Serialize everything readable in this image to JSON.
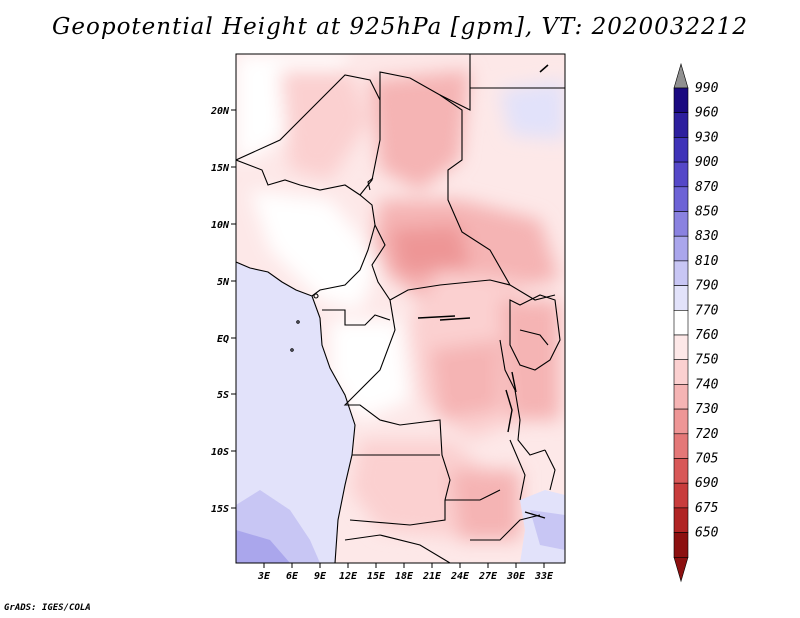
{
  "title": "Geopotential Height at 925hPa [gpm], VT: 2020032212",
  "credit": "GrADS: IGES/COLA",
  "map": {
    "lat_ticks": [
      "20N",
      "15N",
      "10N",
      "5N",
      "EQ",
      "5S",
      "10S",
      "15S"
    ],
    "lon_ticks": [
      "3E",
      "6E",
      "9E",
      "12E",
      "15E",
      "18E",
      "21E",
      "24E",
      "27E",
      "30E",
      "33E"
    ]
  },
  "colorbar": {
    "levels": [
      "990",
      "960",
      "930",
      "900",
      "870",
      "850",
      "830",
      "810",
      "790",
      "770",
      "760",
      "750",
      "740",
      "730",
      "720",
      "705",
      "690",
      "675",
      "650"
    ],
    "colors": [
      "#1a0a80",
      "#2d1f9e",
      "#3f33b8",
      "#5548c8",
      "#6d63d6",
      "#8a82e0",
      "#aaa6ec",
      "#c8c6f4",
      "#e2e2fa",
      "#ffffff",
      "#fde8e8",
      "#fbd0d0",
      "#f5b4b4",
      "#ee9696",
      "#e47878",
      "#d85858",
      "#c83c3c",
      "#b02424",
      "#8c1010"
    ],
    "top_arrow_color": "#909090",
    "bottom_arrow_color": "#8c1010"
  }
}
